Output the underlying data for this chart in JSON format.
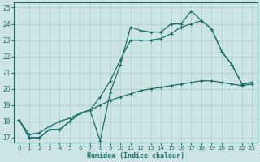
{
  "xlabel": "Humidex (Indice chaleur)",
  "xlim": [
    -0.5,
    23.5
  ],
  "ylim": [
    16.7,
    25.3
  ],
  "yticks": [
    17,
    18,
    19,
    20,
    21,
    22,
    23,
    24,
    25
  ],
  "xticks": [
    0,
    1,
    2,
    3,
    4,
    5,
    6,
    7,
    8,
    9,
    10,
    11,
    12,
    13,
    14,
    15,
    16,
    17,
    18,
    19,
    20,
    21,
    22,
    23
  ],
  "background_color": "#cde4e4",
  "grid_color": "#aacccc",
  "line_color": "#1a7068",
  "line1_x": [
    0,
    1,
    2,
    3,
    4,
    5,
    6,
    7,
    8,
    9,
    10,
    11,
    12,
    13,
    14,
    15,
    16,
    17,
    18,
    19,
    20,
    21,
    22,
    23
  ],
  "line1_y": [
    18.1,
    17.0,
    17.0,
    17.5,
    17.5,
    18.0,
    18.5,
    18.7,
    16.8,
    19.8,
    21.5,
    23.8,
    23.6,
    23.5,
    23.5,
    24.0,
    24.0,
    24.8,
    24.2,
    23.7,
    22.3,
    21.5,
    20.3,
    20.4
  ],
  "line2_x": [
    0,
    1,
    2,
    3,
    4,
    5,
    6,
    7,
    8,
    9,
    10,
    11,
    12,
    13,
    14,
    15,
    16,
    17,
    18,
    19,
    20,
    21,
    22,
    23
  ],
  "line2_y": [
    18.1,
    17.0,
    17.0,
    17.5,
    17.5,
    18.0,
    18.5,
    18.7,
    19.5,
    20.5,
    21.8,
    23.0,
    23.0,
    23.0,
    23.1,
    23.4,
    23.8,
    24.0,
    24.2,
    23.7,
    22.3,
    21.5,
    20.3,
    20.4
  ],
  "line3_x": [
    0,
    1,
    2,
    3,
    4,
    5,
    6,
    7,
    8,
    9,
    10,
    11,
    12,
    13,
    14,
    15,
    16,
    17,
    18,
    19,
    20,
    21,
    22,
    23
  ],
  "line3_y": [
    18.1,
    17.2,
    17.3,
    17.7,
    18.0,
    18.2,
    18.5,
    18.7,
    19.0,
    19.3,
    19.5,
    19.7,
    19.9,
    20.0,
    20.1,
    20.2,
    20.3,
    20.4,
    20.5,
    20.5,
    20.4,
    20.3,
    20.2,
    20.3
  ]
}
